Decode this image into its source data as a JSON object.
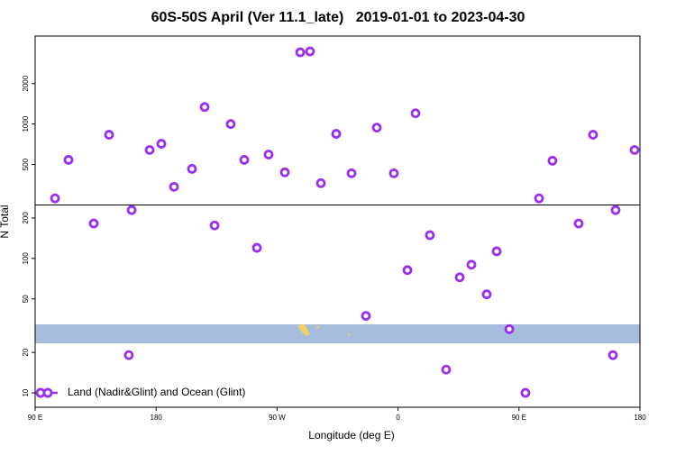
{
  "chart_data": {
    "type": "scatter",
    "title": "60S-50S April (Ver 11.1_late)   2019-01-01 to 2023-04-30",
    "x_label": "Longitude (deg E)",
    "y_label": "N Total",
    "log_y": true,
    "xlim": [
      90,
      540
    ],
    "xticks": [
      {
        "value": 90,
        "label": "90 E"
      },
      180,
      {
        "value": 270,
        "label": "90 W"
      },
      {
        "value": 360,
        "label": "0"
      },
      {
        "value": 450,
        "label": "90 E"
      },
      {
        "value": 540,
        "label": "180"
      }
    ],
    "ylim": [
      7.82,
      4513
    ],
    "yticks": [
      10,
      20,
      50,
      100,
      200,
      500,
      1000,
      2000
    ],
    "hline": 250,
    "legend": "bottom-left",
    "series": [
      {
        "name": "Land (Nadir&Glint) and Ocean (Glint)",
        "color": "#9b2ff0",
        "x": [
          94.0,
          99.4,
          104.8,
          114.8,
          133.6,
          145.0,
          159.7,
          161.8,
          175.2,
          183.9,
          193.3,
          206.7,
          216.1,
          223.5,
          235.5,
          245.6,
          255.0,
          263.7,
          275.8,
          287.2,
          294.5,
          302.6,
          314.0,
          325.4,
          336.1,
          344.2,
          356.9,
          367.0,
          373.0,
          383.7,
          395.8,
          405.9,
          414.6,
          426.0,
          433.4,
          442.8,
          454.8,
          464.9,
          474.9,
          494.4,
          505.1,
          519.9,
          521.9,
          536.0
        ],
        "values": [
          10,
          10,
          280,
          541,
          182,
          832,
          19.1,
          229,
          641,
          713,
          341,
          464,
          1338,
          176,
          1000,
          541,
          120,
          593,
          437,
          3415,
          3467,
          363,
          845,
          430,
          37.4,
          940,
          430,
          81.9,
          1202,
          149,
          14.9,
          72.4,
          89.8,
          54.1,
          113,
          29.8,
          10,
          280,
          533,
          182,
          832,
          19.1,
          229,
          641
        ]
      }
    ]
  }
}
